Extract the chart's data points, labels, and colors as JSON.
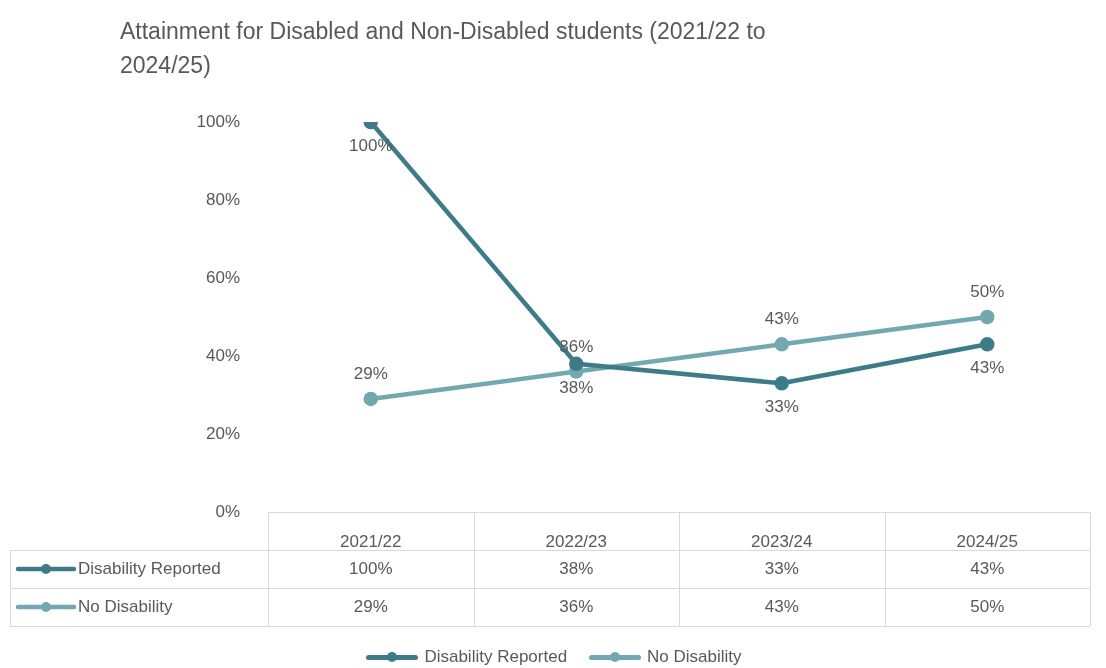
{
  "chart_data": {
    "type": "line",
    "title": "Attainment for Disabled and Non-Disabled students (2021/22 to 2024/25)",
    "categories": [
      "2021/22",
      "2022/23",
      "2023/24",
      "2024/25"
    ],
    "series": [
      {
        "name": "Disability Reported",
        "color": "#3e7b88",
        "values": [
          100,
          38,
          33,
          43
        ],
        "value_labels": [
          "100%",
          "38%",
          "33%",
          "43%"
        ]
      },
      {
        "name": "No Disability",
        "color": "#74a8b0",
        "values": [
          29,
          36,
          43,
          50
        ],
        "value_labels": [
          "29%",
          "36%",
          "43%",
          "50%"
        ]
      }
    ],
    "ylim": [
      0,
      100
    ],
    "yticks": [
      {
        "value": 0,
        "label": "0%"
      },
      {
        "value": 20,
        "label": "20%"
      },
      {
        "value": 40,
        "label": "40%"
      },
      {
        "value": 60,
        "label": "60%"
      },
      {
        "value": 80,
        "label": "80%"
      },
      {
        "value": 100,
        "label": "100%"
      }
    ],
    "marker": "circle",
    "line_style": "solid",
    "legend": "bottom"
  }
}
